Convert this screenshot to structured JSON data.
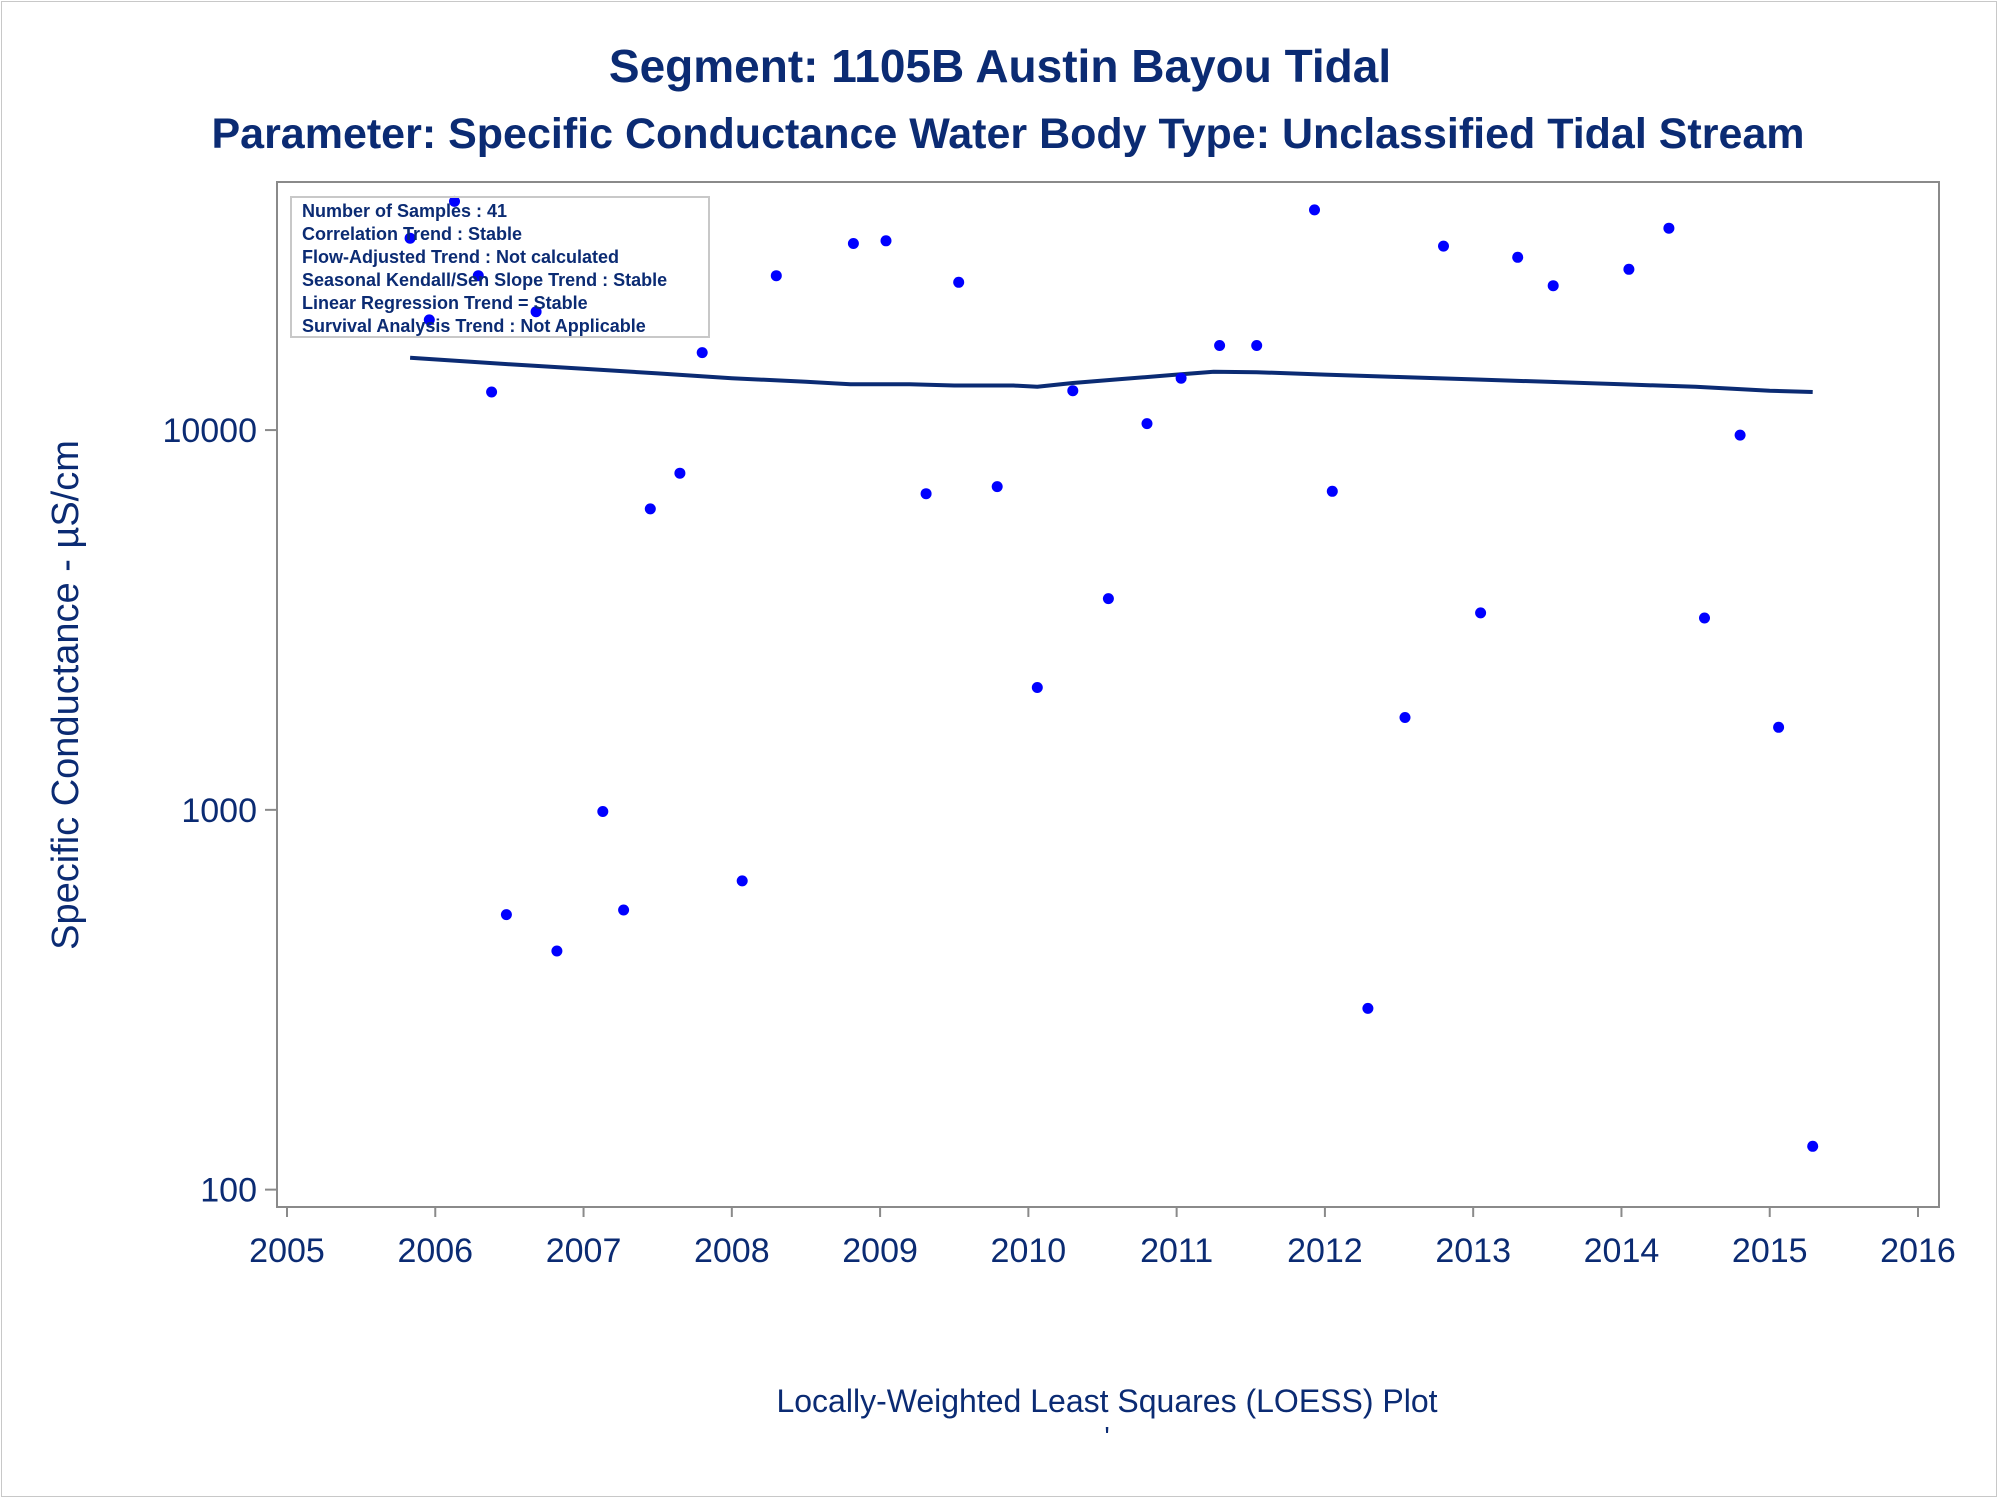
{
  "chart_data": {
    "type": "scatter",
    "title": "Segment: 1105B  Austin Bayou Tidal",
    "subtitle": "Parameter: Specific Conductance   Water Body Type: Unclassified Tidal Stream",
    "xlabel": "Locally-Weighted Least Squares (LOESS) Plot",
    "xlabel_mark": "'",
    "ylabel": "Specific Conductance -  µS/cm",
    "y_scale": "log",
    "xlim": [
      2005,
      2016
    ],
    "ylim": [
      90,
      45000
    ],
    "x_ticks": [
      "2005",
      "2006",
      "2007",
      "2008",
      "2009",
      "2010",
      "2011",
      "2012",
      "2013",
      "2014",
      "2015",
      "2016"
    ],
    "y_ticks": [
      {
        "value": 100,
        "label": "100"
      },
      {
        "value": 1000,
        "label": "1000"
      },
      {
        "value": 10000,
        "label": "10000"
      }
    ],
    "grid": false,
    "stats_box": {
      "position": "top-left",
      "lines": [
        "Number of Samples : 41",
        "Correlation Trend : Stable",
        "Flow-Adjusted Trend : Not calculated",
        "Seasonal Kendall/Sen Slope Trend : Stable",
        "Linear Regression Trend = Stable",
        "Survival Analysis Trend : Not Applicable"
      ]
    },
    "colors": {
      "points": "#0000ff",
      "loess": "#0b2b73",
      "text": "#0b2b73",
      "axis": "#8a8a8a"
    },
    "series": [
      {
        "type": "scatter",
        "points": [
          {
            "x": 2005.83,
            "y": 32000
          },
          {
            "x": 2005.96,
            "y": 19500
          },
          {
            "x": 2006.13,
            "y": 40000
          },
          {
            "x": 2006.29,
            "y": 25500
          },
          {
            "x": 2006.38,
            "y": 12600
          },
          {
            "x": 2006.48,
            "y": 530
          },
          {
            "x": 2006.68,
            "y": 20500
          },
          {
            "x": 2006.82,
            "y": 425
          },
          {
            "x": 2007.13,
            "y": 990
          },
          {
            "x": 2007.27,
            "y": 545
          },
          {
            "x": 2007.45,
            "y": 6200
          },
          {
            "x": 2007.65,
            "y": 7700
          },
          {
            "x": 2007.8,
            "y": 16000
          },
          {
            "x": 2008.07,
            "y": 650
          },
          {
            "x": 2008.3,
            "y": 25500
          },
          {
            "x": 2008.82,
            "y": 31000
          },
          {
            "x": 2009.04,
            "y": 31500
          },
          {
            "x": 2009.31,
            "y": 6800
          },
          {
            "x": 2009.53,
            "y": 24500
          },
          {
            "x": 2009.79,
            "y": 7100
          },
          {
            "x": 2010.06,
            "y": 2100
          },
          {
            "x": 2010.3,
            "y": 12700
          },
          {
            "x": 2010.54,
            "y": 3600
          },
          {
            "x": 2010.8,
            "y": 10400
          },
          {
            "x": 2011.03,
            "y": 13700
          },
          {
            "x": 2011.29,
            "y": 16700
          },
          {
            "x": 2011.54,
            "y": 16700
          },
          {
            "x": 2011.93,
            "y": 38000
          },
          {
            "x": 2012.05,
            "y": 6900
          },
          {
            "x": 2012.29,
            "y": 300
          },
          {
            "x": 2012.54,
            "y": 1750
          },
          {
            "x": 2012.8,
            "y": 30500
          },
          {
            "x": 2013.05,
            "y": 3300
          },
          {
            "x": 2013.3,
            "y": 28500
          },
          {
            "x": 2013.54,
            "y": 24000
          },
          {
            "x": 2014.05,
            "y": 26500
          },
          {
            "x": 2014.32,
            "y": 34000
          },
          {
            "x": 2014.56,
            "y": 3200
          },
          {
            "x": 2014.8,
            "y": 9700
          },
          {
            "x": 2015.06,
            "y": 1650
          },
          {
            "x": 2015.29,
            "y": 130
          }
        ]
      },
      {
        "type": "line",
        "points": [
          {
            "x": 2005.83,
            "y": 15500
          },
          {
            "x": 2006.5,
            "y": 14900
          },
          {
            "x": 2007.0,
            "y": 14500
          },
          {
            "x": 2007.5,
            "y": 14100
          },
          {
            "x": 2008.0,
            "y": 13700
          },
          {
            "x": 2008.5,
            "y": 13400
          },
          {
            "x": 2008.8,
            "y": 13200
          },
          {
            "x": 2009.2,
            "y": 13200
          },
          {
            "x": 2009.5,
            "y": 13100
          },
          {
            "x": 2009.9,
            "y": 13100
          },
          {
            "x": 2010.06,
            "y": 13000
          },
          {
            "x": 2010.3,
            "y": 13300
          },
          {
            "x": 2010.6,
            "y": 13600
          },
          {
            "x": 2011.0,
            "y": 14000
          },
          {
            "x": 2011.25,
            "y": 14250
          },
          {
            "x": 2011.54,
            "y": 14200
          },
          {
            "x": 2012.0,
            "y": 14000
          },
          {
            "x": 2012.5,
            "y": 13800
          },
          {
            "x": 2013.0,
            "y": 13600
          },
          {
            "x": 2013.5,
            "y": 13400
          },
          {
            "x": 2014.0,
            "y": 13200
          },
          {
            "x": 2014.5,
            "y": 13000
          },
          {
            "x": 2015.0,
            "y": 12700
          },
          {
            "x": 2015.29,
            "y": 12600
          }
        ]
      }
    ]
  }
}
